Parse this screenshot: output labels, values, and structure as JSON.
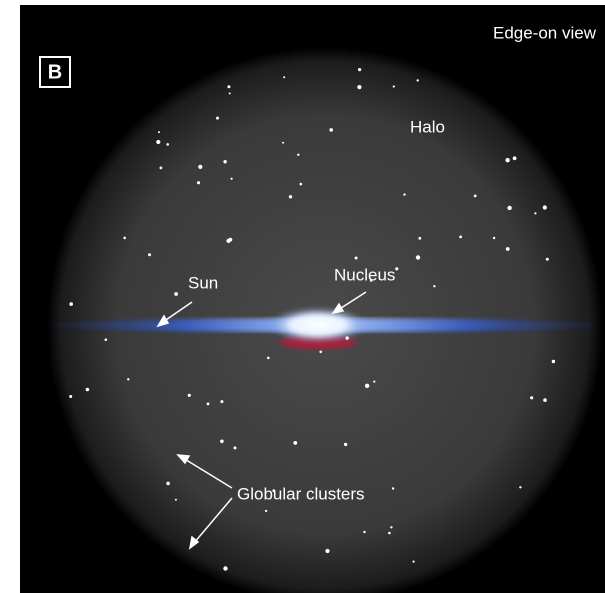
{
  "panel_label": "B",
  "view_title": "Edge-on view",
  "labels": {
    "halo": "Halo",
    "sun": "Sun",
    "nucleus": "Nucleus",
    "globular_clusters": "Globular clusters"
  }
}
